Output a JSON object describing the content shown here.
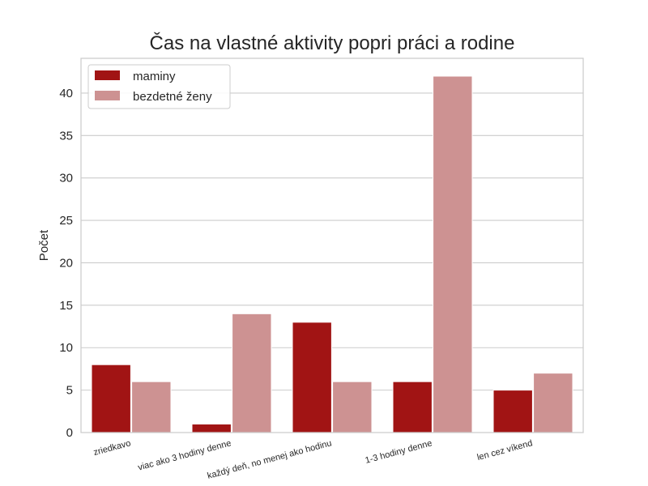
{
  "chart_data": {
    "type": "bar",
    "title": "Čas na vlastné aktivity popri práci a rodine",
    "xlabel": "",
    "ylabel": "Počet",
    "ylim": [
      0,
      44.1
    ],
    "yticks": [
      0,
      5,
      10,
      15,
      20,
      25,
      30,
      35,
      40
    ],
    "categories": [
      "zriedkavo",
      "viac ako 3 hodiny denne",
      "každý deň, no menej ako hodinu",
      "1-3 hodiny denne",
      "len cez víkend"
    ],
    "series": [
      {
        "name": "maminy",
        "color": "#a11414",
        "values": [
          8,
          1,
          13,
          6,
          5
        ]
      },
      {
        "name": "bezdetné ženy",
        "color": "#cd9292",
        "values": [
          6,
          14,
          6,
          42,
          7
        ]
      }
    ],
    "grid": true,
    "legend": "top-left"
  }
}
